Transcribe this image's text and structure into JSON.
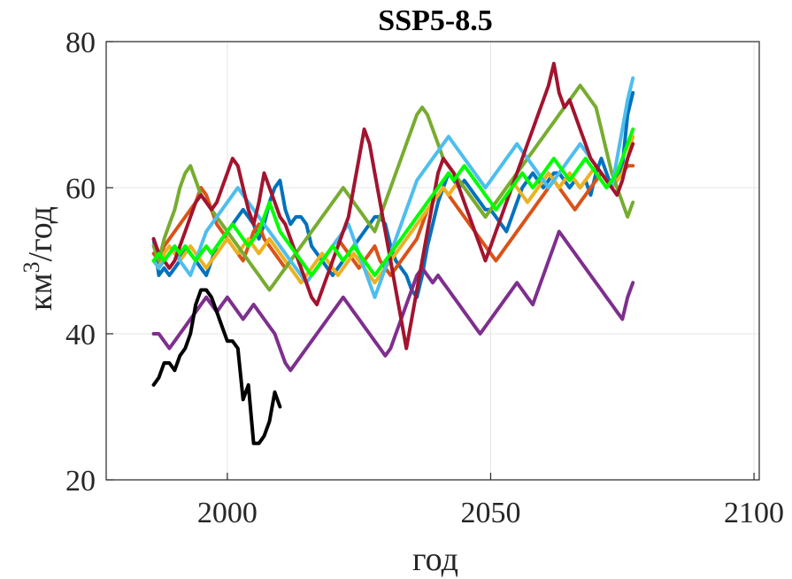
{
  "chart_data": {
    "type": "line",
    "title": "SSP5-8.5",
    "xlabel": "год",
    "ylabel": "км³/год",
    "ylabel_base": "км",
    "ylabel_sup": "3",
    "ylabel_rest": "/год",
    "xlim": [
      1977,
      2101
    ],
    "ylim": [
      20,
      80
    ],
    "xticks": [
      2000,
      2050,
      2100
    ],
    "yticks": [
      20,
      40,
      60,
      80
    ],
    "xtick_labels": [
      "2000",
      "2050",
      "2100"
    ],
    "ytick_labels": [
      "20",
      "40",
      "60",
      "80"
    ],
    "grid": true,
    "x_start": 1986,
    "series": [
      {
        "color": "#0072BD",
        "values": [
          53,
          48,
          49,
          48,
          49,
          50,
          52,
          51,
          50,
          49,
          48,
          50,
          52,
          53,
          54,
          55,
          56,
          57,
          56,
          55,
          53,
          55,
          58,
          60,
          61,
          57,
          55,
          56,
          56,
          55,
          52,
          51,
          50,
          49,
          48,
          49,
          50,
          51,
          52,
          53,
          54,
          55,
          56,
          56,
          55,
          52,
          50,
          49,
          48,
          46,
          45,
          48,
          52,
          55,
          58,
          60,
          62,
          61,
          60,
          61,
          60,
          59,
          58,
          57,
          57,
          56,
          55,
          54,
          56,
          58,
          60,
          61,
          62,
          61,
          60,
          61,
          62,
          62,
          61,
          60,
          61,
          60,
          61,
          59,
          62,
          64,
          62,
          60,
          61,
          63,
          70,
          73
        ]
      },
      {
        "color": "#D95319",
        "values": [
          51,
          50,
          52,
          53,
          54,
          55,
          56,
          57,
          58,
          60,
          59,
          57,
          55,
          54,
          53,
          52,
          51,
          50,
          52,
          54,
          55,
          53,
          52,
          51,
          50,
          49,
          50,
          51,
          50,
          49,
          48,
          49,
          50,
          51,
          52,
          53,
          52,
          51,
          50,
          49,
          50,
          51,
          52,
          50,
          49,
          48,
          49,
          50,
          51,
          52,
          53,
          55,
          57,
          58,
          59,
          60,
          59,
          58,
          57,
          56,
          55,
          54,
          53,
          52,
          51,
          50,
          51,
          52,
          53,
          54,
          55,
          56,
          57,
          58,
          59,
          60,
          61,
          60,
          59,
          58,
          57,
          58,
          59,
          60,
          61,
          62,
          61,
          60,
          61,
          62,
          63,
          63
        ]
      },
      {
        "color": "#EDB120",
        "values": [
          50,
          49,
          51,
          52,
          51,
          50,
          51,
          52,
          51,
          50,
          49,
          50,
          51,
          52,
          53,
          52,
          51,
          52,
          53,
          52,
          51,
          52,
          53,
          52,
          51,
          50,
          49,
          48,
          47,
          48,
          49,
          50,
          51,
          50,
          49,
          48,
          49,
          50,
          51,
          50,
          49,
          48,
          47,
          48,
          49,
          50,
          51,
          52,
          53,
          54,
          55,
          56,
          57,
          58,
          59,
          60,
          59,
          60,
          61,
          60,
          59,
          58,
          57,
          56,
          57,
          58,
          59,
          60,
          61,
          60,
          59,
          58,
          59,
          60,
          61,
          62,
          61,
          60,
          61,
          62,
          61,
          60,
          61,
          62,
          63,
          62,
          61,
          60,
          61,
          62,
          64,
          67
        ]
      },
      {
        "color": "#7E2F8E",
        "values": [
          40,
          40,
          39,
          38,
          39,
          40,
          41,
          42,
          43,
          44,
          45,
          44,
          43,
          44,
          45,
          44,
          43,
          42,
          43,
          44,
          43,
          42,
          41,
          40,
          38,
          36,
          35,
          36,
          37,
          38,
          39,
          40,
          41,
          42,
          43,
          44,
          45,
          44,
          43,
          42,
          41,
          40,
          39,
          38,
          37,
          38,
          40,
          42,
          44,
          46,
          48,
          49,
          48,
          47,
          48,
          47,
          46,
          45,
          44,
          43,
          42,
          41,
          40,
          41,
          42,
          43,
          44,
          45,
          46,
          47,
          46,
          45,
          44,
          46,
          48,
          50,
          52,
          54,
          53,
          52,
          51,
          50,
          49,
          48,
          47,
          46,
          45,
          44,
          43,
          42,
          45,
          47
        ]
      },
      {
        "color": "#77AC30",
        "values": [
          52,
          50,
          53,
          55,
          57,
          60,
          62,
          63,
          61,
          59,
          58,
          57,
          56,
          55,
          54,
          53,
          52,
          51,
          50,
          49,
          48,
          47,
          46,
          47,
          48,
          49,
          50,
          51,
          52,
          53,
          54,
          55,
          56,
          57,
          58,
          59,
          60,
          59,
          58,
          57,
          56,
          55,
          54,
          56,
          58,
          60,
          62,
          64,
          66,
          68,
          70,
          71,
          70,
          68,
          66,
          64,
          63,
          62,
          61,
          60,
          59,
          58,
          57,
          56,
          57,
          58,
          59,
          60,
          61,
          62,
          63,
          64,
          65,
          66,
          67,
          68,
          69,
          70,
          71,
          72,
          73,
          74,
          73,
          72,
          71,
          68,
          65,
          62,
          60,
          58,
          56,
          58
        ]
      },
      {
        "color": "#4DBEEE",
        "values": [
          50,
          49,
          50,
          51,
          52,
          50,
          49,
          48,
          50,
          52,
          54,
          55,
          56,
          57,
          58,
          59,
          60,
          59,
          58,
          57,
          56,
          55,
          54,
          53,
          52,
          51,
          50,
          49,
          48,
          47,
          48,
          49,
          50,
          51,
          52,
          53,
          54,
          55,
          53,
          51,
          49,
          47,
          45,
          47,
          49,
          51,
          53,
          55,
          57,
          59,
          61,
          62,
          63,
          64,
          65,
          66,
          67,
          66,
          65,
          64,
          63,
          62,
          61,
          60,
          61,
          62,
          63,
          64,
          65,
          66,
          65,
          64,
          63,
          62,
          61,
          60,
          61,
          62,
          63,
          64,
          65,
          66,
          65,
          64,
          63,
          62,
          61,
          60,
          64,
          68,
          72,
          75
        ]
      },
      {
        "color": "#A2142F",
        "values": [
          53,
          51,
          50,
          49,
          50,
          52,
          54,
          56,
          58,
          59,
          58,
          57,
          58,
          60,
          62,
          64,
          63,
          60,
          57,
          55,
          58,
          62,
          60,
          58,
          56,
          55,
          53,
          51,
          49,
          47,
          45,
          44,
          46,
          48,
          50,
          52,
          54,
          56,
          60,
          64,
          68,
          66,
          62,
          58,
          54,
          50,
          46,
          42,
          38,
          42,
          46,
          50,
          54,
          58,
          62,
          64,
          63,
          62,
          60,
          58,
          56,
          54,
          52,
          50,
          52,
          54,
          56,
          58,
          60,
          62,
          64,
          66,
          68,
          70,
          72,
          74,
          77,
          73,
          71,
          72,
          70,
          68,
          66,
          64,
          63,
          62,
          61,
          60,
          59,
          61,
          64,
          66
        ]
      },
      {
        "color": "#00FF00",
        "values": [
          50,
          51,
          50,
          51,
          52,
          51,
          52,
          51,
          50,
          51,
          52,
          51,
          52,
          53,
          54,
          55,
          54,
          53,
          52,
          53,
          54,
          56,
          58,
          56,
          54,
          53,
          52,
          51,
          50,
          49,
          48,
          49,
          50,
          51,
          52,
          51,
          50,
          51,
          52,
          51,
          50,
          49,
          48,
          49,
          50,
          51,
          52,
          53,
          54,
          55,
          56,
          57,
          58,
          59,
          60,
          61,
          62,
          61,
          62,
          63,
          62,
          61,
          60,
          59,
          58,
          57,
          58,
          59,
          60,
          61,
          62,
          61,
          60,
          61,
          62,
          63,
          64,
          63,
          62,
          61,
          62,
          63,
          64,
          63,
          62,
          61,
          60,
          61,
          62,
          64,
          66,
          68
        ]
      },
      {
        "color": "#000000",
        "x_start": 1986,
        "values": [
          33,
          34,
          36,
          36,
          35,
          37,
          38,
          40,
          44,
          46,
          46,
          45,
          43,
          41,
          39,
          39,
          38,
          31,
          33,
          25,
          25,
          26,
          28,
          32,
          30
        ]
      }
    ]
  }
}
